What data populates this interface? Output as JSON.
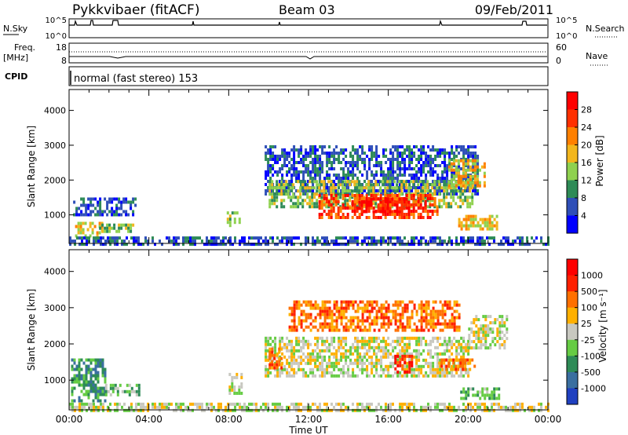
{
  "header": {
    "station": "Pykkvibaer (fitACF)",
    "beam": "Beam 03",
    "date": "09/Feb/2011"
  },
  "noise_panel": {
    "left_label": "N.Sky",
    "right_label": "N.Search",
    "left_ticks": [
      "10^5",
      "10^0"
    ],
    "right_ticks": [
      "10^5",
      "10^0"
    ]
  },
  "freq_panel": {
    "left_label_line1": "Freq.",
    "left_label_line2": "[MHz]",
    "right_label": "Nave",
    "left_ticks": [
      "18",
      "8"
    ],
    "right_ticks": [
      "60",
      "0"
    ]
  },
  "cpid_panel": {
    "label": "CPID",
    "mode_text": "normal (fast stereo) 153"
  },
  "chart_data": [
    {
      "type": "heatmap",
      "name": "power",
      "ylabel": "Slant Range [km]",
      "xlabel": "",
      "ylim": [
        180,
        4600
      ],
      "yticks": [
        "1000",
        "2000",
        "3000",
        "4000"
      ],
      "colorbar": {
        "label": "Power [dB]",
        "ticks": [
          "4",
          "8",
          "12",
          "16",
          "20",
          "24",
          "28"
        ],
        "colors": [
          "#0000ff",
          "#2f4fb8",
          "#2e8b57",
          "#8fd14f",
          "#f2b61d",
          "#ff8000",
          "#ff3000",
          "#ff0000"
        ]
      },
      "regions": [
        {
          "t0": 0.2,
          "t1": 3.3,
          "r0": 1000,
          "r1": 1500,
          "level": 1
        },
        {
          "t0": 0.3,
          "t1": 1.6,
          "r0": 350,
          "r1": 800,
          "level": 4
        },
        {
          "t0": 1.5,
          "t1": 3.2,
          "r0": 500,
          "r1": 750,
          "level": 3
        },
        {
          "t0": 0.0,
          "t1": 24.0,
          "r0": 180,
          "r1": 380,
          "level": 1
        },
        {
          "t0": 7.9,
          "t1": 8.5,
          "r0": 650,
          "r1": 1100,
          "level": 3
        },
        {
          "t0": 9.8,
          "t1": 20.5,
          "r0": 1600,
          "r1": 3000,
          "level": 1
        },
        {
          "t0": 10.0,
          "t1": 20.2,
          "r0": 1200,
          "r1": 2000,
          "level": 3
        },
        {
          "t0": 12.5,
          "t1": 18.5,
          "r0": 900,
          "r1": 1600,
          "level": 6
        },
        {
          "t0": 14.5,
          "t1": 17.0,
          "r0": 1050,
          "r1": 1500,
          "level": 7
        },
        {
          "t0": 19.0,
          "t1": 20.8,
          "r0": 1800,
          "r1": 2600,
          "level": 4
        },
        {
          "t0": 19.5,
          "t1": 21.5,
          "r0": 600,
          "r1": 1000,
          "level": 4
        }
      ]
    },
    {
      "type": "heatmap",
      "name": "velocity",
      "ylabel": "Slant Range [km]",
      "xlabel": "Time UT",
      "ylim": [
        180,
        4600
      ],
      "yticks": [
        "1000",
        "2000",
        "3000",
        "4000"
      ],
      "xticks": [
        "00:00",
        "04:00",
        "08:00",
        "12:00",
        "16:00",
        "20:00",
        "00:00"
      ],
      "xlim": [
        0,
        24
      ],
      "colorbar": {
        "label": "Velocity [m s⁻¹]",
        "ticks": [
          "1000",
          "500",
          "100",
          "25",
          "-25",
          "-100",
          "-500",
          "-1000"
        ],
        "colors": [
          "#2040c0",
          "#3a6fa0",
          "#2e8b57",
          "#66cc44",
          "#c8c8c0",
          "#ffb000",
          "#ff7000",
          "#ff2000",
          "#ff0000"
        ]
      },
      "regions": [
        {
          "t0": 0.1,
          "t1": 1.8,
          "r0": 400,
          "r1": 1600,
          "level": 2
        },
        {
          "t0": 1.8,
          "t1": 3.5,
          "r0": 600,
          "r1": 900,
          "level": 3
        },
        {
          "t0": 0.0,
          "t1": 24.0,
          "r0": 180,
          "r1": 380,
          "level": 4
        },
        {
          "t0": 8.0,
          "t1": 8.6,
          "r0": 600,
          "r1": 1200,
          "level": 4
        },
        {
          "t0": 9.8,
          "t1": 20.0,
          "r0": 1100,
          "r1": 2200,
          "level": 4
        },
        {
          "t0": 11.0,
          "t1": 19.5,
          "r0": 2400,
          "r1": 3200,
          "level": 6
        },
        {
          "t0": 10.0,
          "t1": 10.7,
          "r0": 1300,
          "r1": 1900,
          "level": 6
        },
        {
          "t0": 16.3,
          "t1": 17.2,
          "r0": 1200,
          "r1": 1700,
          "level": 7
        },
        {
          "t0": 18.5,
          "t1": 20.3,
          "r0": 1300,
          "r1": 1600,
          "level": 6
        },
        {
          "t0": 19.6,
          "t1": 21.5,
          "r0": 500,
          "r1": 800,
          "level": 3
        },
        {
          "t0": 20.0,
          "t1": 22.0,
          "r0": 1900,
          "r1": 2800,
          "level": 4
        }
      ]
    }
  ]
}
